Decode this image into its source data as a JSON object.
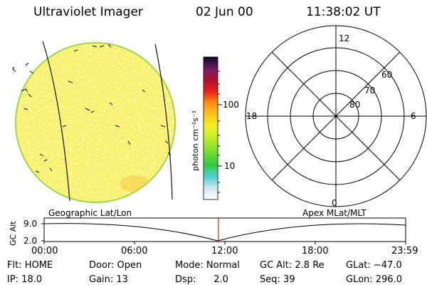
{
  "header": {
    "instrument": "Ultraviolet Imager",
    "date": "02 Jun 00",
    "time": "11:38:02 UT"
  },
  "colorbar": {
    "unit_label": "photon cm⁻²s⁻¹",
    "ticks": [
      "100",
      "10"
    ]
  },
  "polar_plot": {
    "mlt_labels": {
      "top": "12",
      "left": "18",
      "right": "6",
      "bottom": "0"
    },
    "lat_labels": [
      "60",
      "70",
      "80"
    ]
  },
  "timeline": {
    "left_title": "Geographic Lat/Lon",
    "right_title": "Apex MLat/MLT",
    "y_axis_title": "GC Alt",
    "y_ticks": [
      "9.0",
      "2.0"
    ],
    "x_ticks": [
      "00:00",
      "06:00",
      "12:00",
      "18:00",
      "23:59"
    ],
    "current_time_marker": "11:38"
  },
  "status": {
    "row1": [
      "Flt: HOME",
      "Door: Open",
      "Mode: Normal",
      "GC Alt: 2.8 Re",
      "GLat: −47.0"
    ],
    "row2": [
      "IP: 18.0",
      "Gain: 13",
      "Dsp:      2.0",
      "Seq: 39",
      "GLon: 296.0"
    ]
  },
  "colors": {
    "image_fill": "#f7f06a",
    "image_rim": "#9ad84a",
    "marker": "#cc0000"
  }
}
